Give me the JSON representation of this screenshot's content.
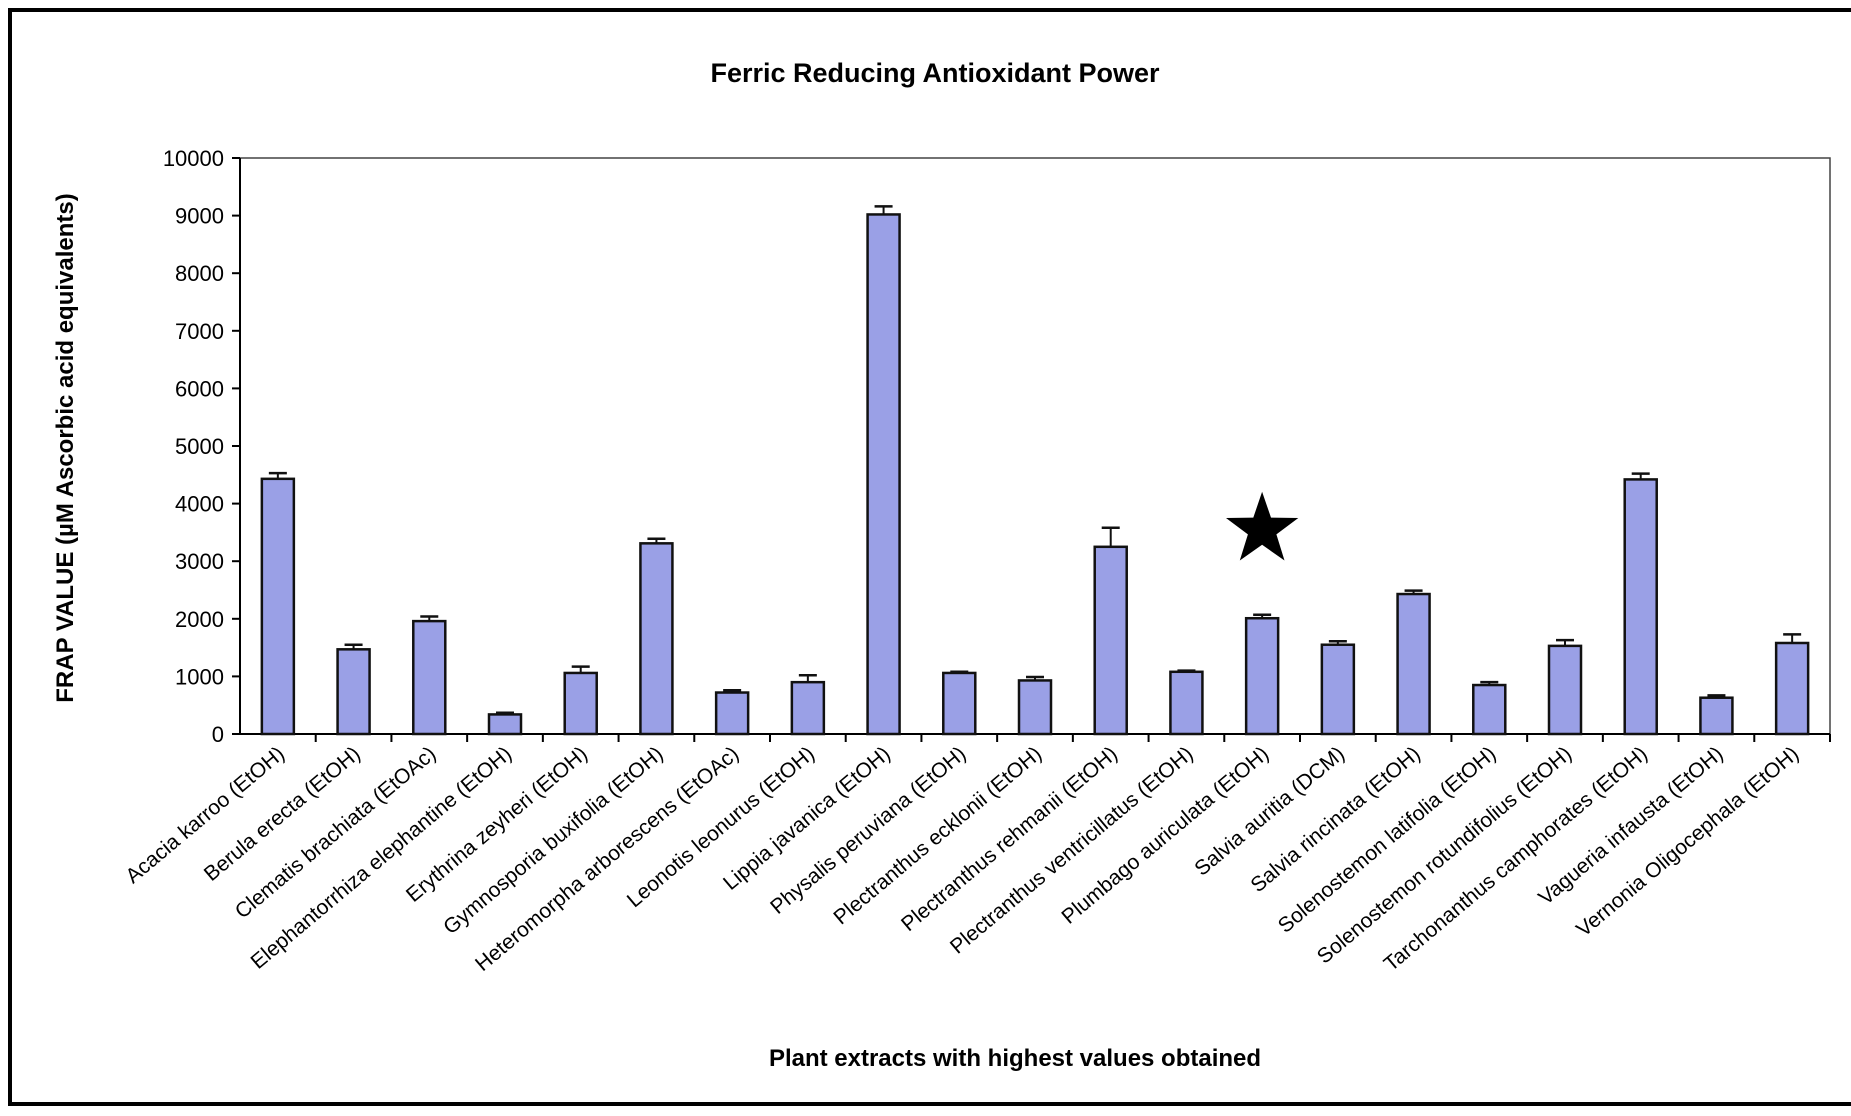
{
  "chart_data": {
    "type": "bar",
    "title": "Ferric Reducing Antioxidant Power",
    "xlabel": "Plant extracts with highest values obtained",
    "ylabel": "FRAP VALUE (µM Ascorbic acid equivalents)",
    "ylim": [
      0,
      10000
    ],
    "yticks": [
      0,
      1000,
      2000,
      3000,
      4000,
      5000,
      6000,
      7000,
      8000,
      9000,
      10000
    ],
    "grid": false,
    "legend": "none",
    "bar_color": "#9AA0E6",
    "categories": [
      "Acacia karroo (EtOH)",
      "Berula erecta (EtOH)",
      "Clematis brachiata (EtOAc)",
      "Elephantorrhiza elephantine (EtOH)",
      "Erythrina zeyheri (EtOH)",
      "Gymnosporia buxifolia (EtOH)",
      "Heteromorpha arborescens (EtOAc)",
      "Leonotis leonurus (EtOH)",
      "Lippia javanica (EtOH)",
      "Physalis peruviana (EtOH)",
      "Plectranthus ecklonii (EtOH)",
      "Plectranthus rehmanii (EtOH)",
      "Plectranthus ventricillatus (EtOH)",
      "Plumbago auriculata (EtOH)",
      "Salvia auritia (DCM)",
      "Salvia rincinata (EtOH)",
      "Solenostemon latifolia (EtOH)",
      "Solenostemon rotundifolius (EtOH)",
      "Tarchonanthus camphorates (EtOH)",
      "Vagueria infausta (EtOH)",
      "Vernonia Oligocephala (EtOH)"
    ],
    "values": [
      4430,
      1470,
      1960,
      340,
      1060,
      3310,
      720,
      900,
      9020,
      1060,
      930,
      3250,
      1080,
      2010,
      1550,
      2430,
      850,
      1530,
      4420,
      630,
      1580
    ],
    "errors": [
      100,
      80,
      80,
      30,
      110,
      80,
      40,
      120,
      140,
      20,
      60,
      330,
      20,
      60,
      60,
      60,
      50,
      100,
      100,
      40,
      150
    ],
    "annotations": [
      {
        "type": "star",
        "category": "Plumbago auriculata (EtOH)"
      }
    ]
  }
}
